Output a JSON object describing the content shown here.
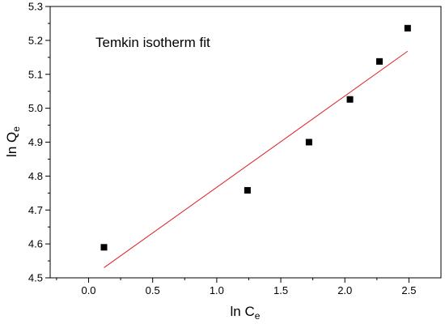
{
  "chart_data": {
    "type": "scatter",
    "annotation": "Temkin isotherm fit",
    "xlabel": {
      "main": "ln C",
      "sub": "e"
    },
    "ylabel": {
      "main": "ln Q",
      "sub": "e"
    },
    "xlim": [
      -0.3,
      2.75
    ],
    "ylim": [
      4.5,
      5.3
    ],
    "xticks": [
      "0.0",
      "0.5",
      "1.0",
      "1.5",
      "2.0",
      "2.5"
    ],
    "xtick_values": [
      0.0,
      0.5,
      1.0,
      1.5,
      2.0,
      2.5
    ],
    "yticks": [
      "4.5",
      "4.6",
      "4.7",
      "4.8",
      "4.9",
      "5.0",
      "5.1",
      "5.2",
      "5.3"
    ],
    "ytick_values": [
      4.5,
      4.6,
      4.7,
      4.8,
      4.9,
      5.0,
      5.1,
      5.2,
      5.3
    ],
    "grid": false,
    "series": [
      {
        "x": [
          0.12,
          1.24,
          1.72,
          2.04,
          2.27,
          2.49
        ],
        "y": [
          4.59,
          4.758,
          4.9,
          5.026,
          5.138,
          5.236
        ],
        "marker": "square",
        "color": "#000000"
      }
    ],
    "fit_line": {
      "x": [
        0.12,
        2.49
      ],
      "y": [
        4.53,
        5.168
      ],
      "color": "#e02020"
    }
  }
}
